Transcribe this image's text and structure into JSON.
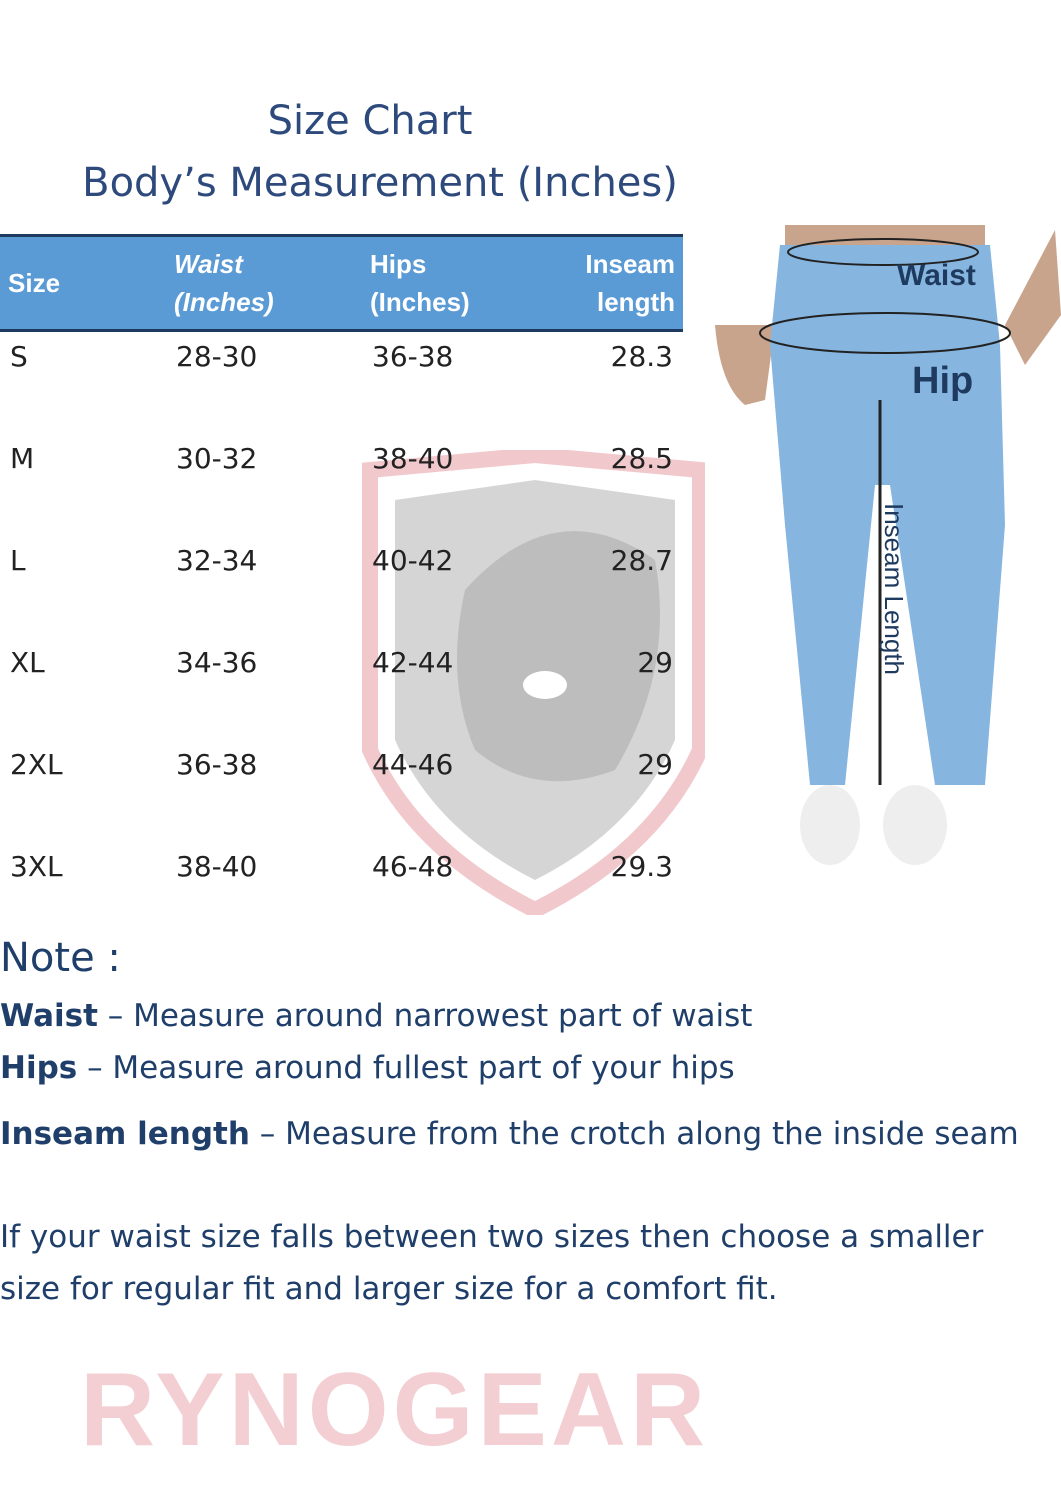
{
  "title": "Size Chart",
  "subtitle": "Body’s Measurement (Inches)",
  "table": {
    "headers": [
      "Size",
      "Waist (Inches)",
      "Hips (Inches)",
      "Inseam length"
    ],
    "header_lines": [
      [
        "Size"
      ],
      [
        "Waist",
        "(Inches)"
      ],
      [
        "Hips",
        "(Inches)"
      ],
      [
        "Inseam",
        "length"
      ]
    ],
    "header_color": "#5b9bd5",
    "rows": [
      [
        "S",
        "28-30",
        "36-38",
        "28.3"
      ],
      [
        "M",
        "30-32",
        "38-40",
        "28.5"
      ],
      [
        "L",
        "32-34",
        "40-42",
        "28.7"
      ],
      [
        "XL",
        "34-36",
        "42-44",
        "29"
      ],
      [
        "2XL",
        "36-38",
        "44-46",
        "29"
      ],
      [
        "3XL",
        "38-40",
        "46-48",
        "29.3"
      ]
    ]
  },
  "diagram": {
    "labels": {
      "waist": "Waist",
      "hip": "Hip",
      "inseam": "Inseam Length"
    }
  },
  "watermark": "RYNOGEAR",
  "notes": {
    "heading": "Note :",
    "items": [
      {
        "term": "Waist",
        "text": " – Measure around narrowest part of waist"
      },
      {
        "term": "Hips",
        "text": " – Measure around fullest part of your hips"
      },
      {
        "term": "Inseam length",
        "text": " – Measure from the crotch along the inside seam"
      }
    ],
    "advice_line1": "If your waist size falls between two sizes then choose a smaller",
    "advice_line2": "size for regular fit and larger size for a comfort fit."
  }
}
